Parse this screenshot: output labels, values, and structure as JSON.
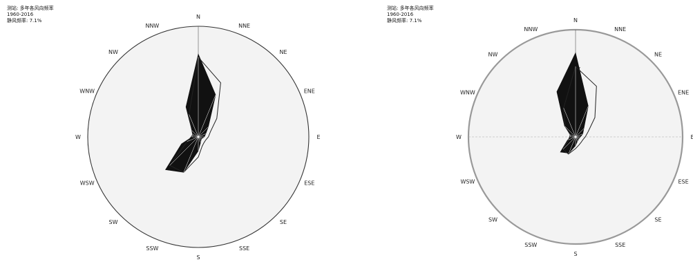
{
  "chart_data": [
    {
      "type": "polar-bar",
      "caption": [
        "测站: 多年各风向频率",
        "1960-2016",
        "静风频率: 7.1%"
      ],
      "directions": [
        "N",
        "NNE",
        "NE",
        "ENE",
        "E",
        "ESE",
        "SE",
        "SSE",
        "S",
        "SSW",
        "SW",
        "WSW",
        "W",
        "WNW",
        "NW",
        "NNW"
      ],
      "labels": [
        "N",
        "NNE",
        "NE",
        "ENE",
        "E",
        "ESE",
        "SE",
        "SSE",
        "S",
        "SSW",
        "SW",
        "WSW",
        "W",
        "WNW",
        "NW",
        "NNW"
      ],
      "rlabels": [
        "7",
        "6",
        "5",
        "4",
        "3",
        "2",
        "1"
      ],
      "rmax": 8,
      "series": [
        {
          "values": [
            8.2,
            4.5,
            1.4,
            0.8,
            0.6,
            0.4,
            0.4,
            0.6,
            1.4,
            3.8,
            4.6,
            1.8,
            0.6,
            0.5,
            0.9,
            3.2
          ]
        },
        {
          "values": [
            7.9,
            5.8,
            2.6,
            1.3,
            1.0,
            0.8,
            0.8,
            1.0,
            2.0,
            3.8,
            4.0,
            1.2,
            0.7,
            0.6,
            0.9,
            2.4
          ]
        }
      ]
    },
    {
      "type": "polar-bar",
      "caption": [
        "测站: 多年各风向频率",
        "1960-2016",
        "静风频率: 7.1%"
      ],
      "directions": [
        "N",
        "NNE",
        "NE",
        "ENE",
        "E",
        "ESE",
        "SE",
        "SSE",
        "S",
        "SSW",
        "SW",
        "WSW",
        "W",
        "WNW",
        "NW",
        "NNW"
      ],
      "labels": [
        "N",
        "NNE",
        "NE",
        "ENE",
        "E",
        "ESE",
        "SE",
        "SSE",
        "S",
        "SSW",
        "SW",
        "WSW",
        "W",
        "WNW",
        "NW",
        "NNW"
      ],
      "rlabels": [
        "7",
        "6",
        "5",
        "4",
        "3",
        "2",
        "1"
      ],
      "rmax": 8,
      "series": [
        {
          "values": [
            8.6,
            3.4,
            1.2,
            0.8,
            0.5,
            0.4,
            0.4,
            0.5,
            0.9,
            1.8,
            2.2,
            0.9,
            0.5,
            0.5,
            1.6,
            5.0
          ]
        },
        {
          "values": [
            7.2,
            5.6,
            2.8,
            1.4,
            1.0,
            0.8,
            0.8,
            0.9,
            1.2,
            1.9,
            1.8,
            0.8,
            0.6,
            0.6,
            1.5,
            3.2
          ]
        }
      ]
    }
  ]
}
